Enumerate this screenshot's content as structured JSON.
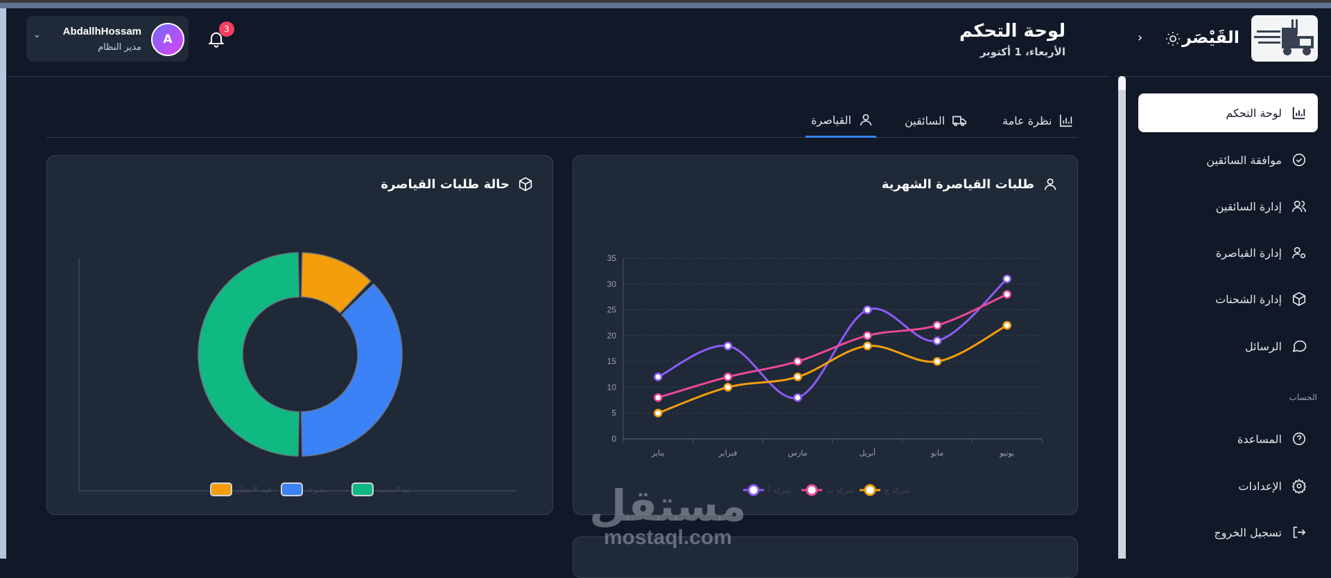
{
  "header": {
    "title": "لوحة التحكم",
    "date": "الأربعاء، 1 أكتوبر",
    "notifications_count": "3",
    "user": {
      "name": "AbdallhHossam",
      "role": "مدير النظام",
      "initial": "A"
    }
  },
  "sidebar": {
    "brand": "القَيْصَر",
    "items": [
      {
        "label": "لوحة التحكم",
        "icon": "bar-chart-icon",
        "active": true
      },
      {
        "label": "موافقة السائقين",
        "icon": "check-circle-icon"
      },
      {
        "label": "إدارة السائقين",
        "icon": "users-icon"
      },
      {
        "label": "إدارة القياصرة",
        "icon": "user-cog-icon"
      },
      {
        "label": "إدارة الشحنات",
        "icon": "package-icon"
      },
      {
        "label": "الرسائل",
        "icon": "message-icon"
      }
    ],
    "account_section": "الحساب",
    "account_items": [
      {
        "label": "المساعدة",
        "icon": "help-icon"
      },
      {
        "label": "الإعدادات",
        "icon": "settings-icon"
      },
      {
        "label": "تسجيل الخروج",
        "icon": "logout-icon"
      }
    ]
  },
  "tabs": [
    {
      "label": "نظرة عامة",
      "icon": "bar-chart-icon"
    },
    {
      "label": "السائقين",
      "icon": "truck-icon"
    },
    {
      "label": "القياصرة",
      "icon": "user-icon",
      "active": true
    }
  ],
  "cards": {
    "line_title": "طلبات القياصرة الشهرية",
    "donut_title": "حالة طلبات القياصرة"
  },
  "watermark": {
    "ar": "مستقل",
    "en": "mostaql.com"
  },
  "chart_data": [
    {
      "type": "line",
      "title": "طلبات القياصرة الشهرية",
      "categories": [
        "يناير",
        "فبراير",
        "مارس",
        "أبريل",
        "مايو",
        "يونيو"
      ],
      "ylim": [
        0,
        35
      ],
      "yticks": [
        0,
        5,
        10,
        15,
        20,
        25,
        30,
        35
      ],
      "grid": true,
      "legend": "bottom",
      "series": [
        {
          "name": "شركة أ",
          "color": "#8b5cf6",
          "values": [
            12,
            18,
            8,
            25,
            19,
            31
          ]
        },
        {
          "name": "شركة ب",
          "color": "#ec4899",
          "values": [
            8,
            12,
            15,
            20,
            22,
            28
          ]
        },
        {
          "name": "شركة ج",
          "color": "#f59e0b",
          "values": [
            5,
            10,
            12,
            18,
            15,
            22
          ]
        }
      ]
    },
    {
      "type": "pie",
      "title": "حالة طلبات القياصرة",
      "legend": "bottom",
      "slices": [
        {
          "name": "قيد الانتظار",
          "color": "#f59e0b",
          "value": 10
        },
        {
          "name": "مقبولة",
          "color": "#3b82f6",
          "value": 30
        },
        {
          "name": "تم التسليم",
          "color": "#10b981",
          "value": 40
        }
      ]
    }
  ]
}
